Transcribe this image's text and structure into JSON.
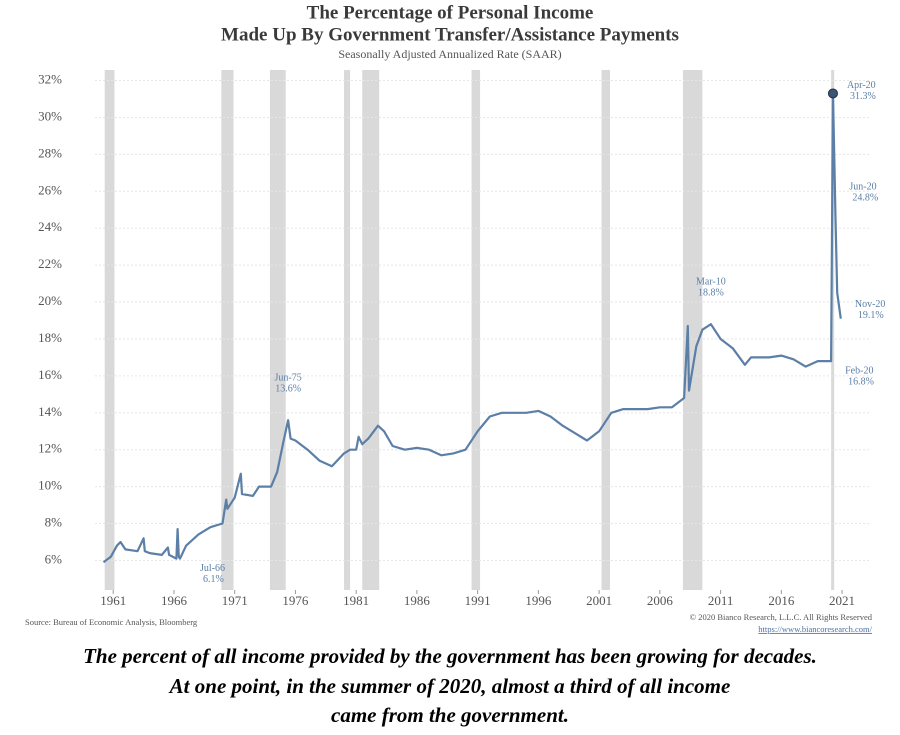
{
  "chart_data": {
    "type": "line",
    "title": [
      "The Percentage of Personal Income",
      "Made Up By Government Transfer/Assistance Payments"
    ],
    "subtitle": "Seasonally Adjusted Annualized Rate (SAAR)",
    "source": "Source: Bureau of Economic Analysis, Bloomberg",
    "copyright": "© 2020 Bianco Research, L.L.C. All Rights Reserved",
    "url": "https://www.biancoresearch.com/",
    "caption": [
      "The percent of all income provided by the government has been growing for decades.",
      "At one point, in the summer of 2020, almost a third of all income",
      "came from the government."
    ],
    "xlim": [
      1959.5,
      2023.3
    ],
    "xticks": [
      1961,
      1966,
      1971,
      1976,
      1981,
      1986,
      1991,
      1996,
      2001,
      2006,
      2011,
      2016,
      2021
    ],
    "ylim": [
      4.4,
      32.3
    ],
    "yticks": [
      {
        "value": 6,
        "label": "6%"
      },
      {
        "value": 8,
        "label": "8%"
      },
      {
        "value": 10,
        "label": "10%"
      },
      {
        "value": 12,
        "label": "12%"
      },
      {
        "value": 14,
        "label": "14%"
      },
      {
        "value": 16,
        "label": "16%"
      },
      {
        "value": 18,
        "label": "18%"
      },
      {
        "value": 20,
        "label": "20%"
      },
      {
        "value": 22,
        "label": "22%"
      },
      {
        "value": 24,
        "label": "24%"
      },
      {
        "value": 26,
        "label": "26%"
      },
      {
        "value": 28,
        "label": "28%"
      },
      {
        "value": 30,
        "label": "30%"
      },
      {
        "value": 32,
        "label": "32%"
      }
    ],
    "grid": true,
    "recession_color": "#d9d9d9",
    "recessions": [
      [
        1960.3,
        1961.1
      ],
      [
        1969.9,
        1970.9
      ],
      [
        1973.9,
        1975.2
      ],
      [
        1980.0,
        1980.5
      ],
      [
        1981.5,
        1982.9
      ],
      [
        1990.5,
        1991.2
      ],
      [
        2001.2,
        2001.9
      ],
      [
        2007.9,
        2009.5
      ],
      [
        2020.1,
        2020.35
      ]
    ],
    "series": [
      {
        "color": "#5b7fa6",
        "x": [
          1960.2,
          1960.8,
          1961.3,
          1961.6,
          1962,
          1963,
          1963.5,
          1963.6,
          1964,
          1965,
          1965.5,
          1965.6,
          1966.2,
          1966.3,
          1966.4,
          1966.5,
          1967,
          1968,
          1969,
          1970,
          1970.3,
          1970.4,
          1971,
          1971.5,
          1971.6,
          1972.5,
          1973,
          1974,
          1974.5,
          1975,
          1975.4,
          1975.6,
          1976,
          1977,
          1978,
          1979,
          1980,
          1980.5,
          1981,
          1981.2,
          1981.5,
          1982,
          1982.8,
          1983.3,
          1984,
          1985,
          1986,
          1987,
          1988,
          1989,
          1990,
          1991,
          1992,
          1993,
          1994,
          1995,
          1996,
          1997,
          1998,
          1999,
          2000,
          2001,
          2002,
          2003,
          2004,
          2005,
          2006,
          2007,
          2008,
          2008.3,
          2008.4,
          2009,
          2009.5,
          2010.2,
          2011,
          2012,
          2013,
          2013.5,
          2014,
          2015,
          2016,
          2017,
          2018,
          2019,
          2020.1,
          2020.25,
          2020.45,
          2020.6,
          2020.9
        ],
        "values": [
          5.9,
          6.2,
          6.8,
          7.0,
          6.6,
          6.5,
          7.2,
          6.5,
          6.4,
          6.3,
          6.7,
          6.3,
          6.1,
          7.7,
          6.2,
          6.1,
          6.8,
          7.4,
          7.8,
          8.0,
          9.3,
          8.8,
          9.4,
          10.7,
          9.6,
          9.5,
          10.0,
          10.0,
          10.8,
          12.4,
          13.6,
          12.6,
          12.5,
          12.0,
          11.4,
          11.1,
          11.8,
          12.0,
          12.0,
          12.7,
          12.3,
          12.6,
          13.3,
          13.0,
          12.2,
          12.0,
          12.1,
          12.0,
          11.7,
          11.8,
          12.0,
          13.0,
          13.8,
          14.0,
          14.0,
          14.0,
          14.1,
          13.8,
          13.3,
          12.9,
          12.5,
          13.0,
          14.0,
          14.2,
          14.2,
          14.2,
          14.3,
          14.3,
          14.8,
          18.7,
          15.2,
          17.6,
          18.5,
          18.8,
          18.0,
          17.5,
          16.6,
          17.0,
          17.0,
          17.0,
          17.1,
          16.9,
          16.5,
          16.8,
          16.8,
          31.3,
          24.8,
          20.5,
          19.1
        ]
      }
    ],
    "annotations": [
      {
        "label": "Jul-66",
        "x": 1966.5,
        "value": 6.1,
        "value_label": "6.1%"
      },
      {
        "label": "Jun-75",
        "x": 1975.4,
        "value": 13.6,
        "value_label": "13.6%"
      },
      {
        "label": "Mar-10",
        "x": 2010.2,
        "value": 18.8,
        "value_label": "18.8%"
      },
      {
        "label": "Apr-20",
        "x": 2020.25,
        "value": 31.3,
        "value_label": "31.3%"
      },
      {
        "label": "Jun-20",
        "x": 2020.45,
        "value": 24.8,
        "value_label": "24.8%"
      },
      {
        "label": "Nov-20",
        "x": 2020.9,
        "value": 19.1,
        "value_label": "19.1%"
      },
      {
        "label": "Feb-20",
        "x": 2020.1,
        "value": 16.8,
        "value_label": "16.8%"
      }
    ]
  }
}
